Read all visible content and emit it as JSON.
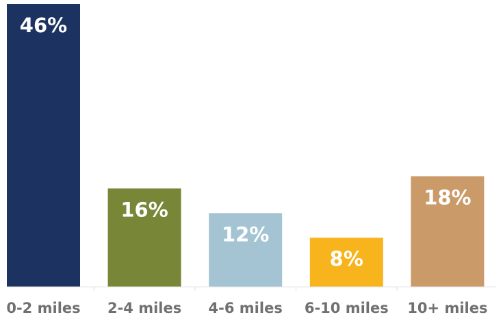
{
  "chart_data": {
    "type": "bar",
    "categories": [
      "0-2 miles",
      "2-4 miles",
      "4-6 miles",
      "6-10 miles",
      "10+ miles"
    ],
    "values": [
      46,
      16,
      12,
      8,
      18
    ],
    "value_labels": [
      "46%",
      "16%",
      "12%",
      "8%",
      "18%"
    ],
    "colors": [
      "#1c3260",
      "#778737",
      "#a4c4d3",
      "#f8b41c",
      "#cb9a69"
    ],
    "title": "",
    "xlabel": "",
    "ylabel": "",
    "ylim": [
      0,
      46
    ],
    "grid": false,
    "legend": "none"
  }
}
